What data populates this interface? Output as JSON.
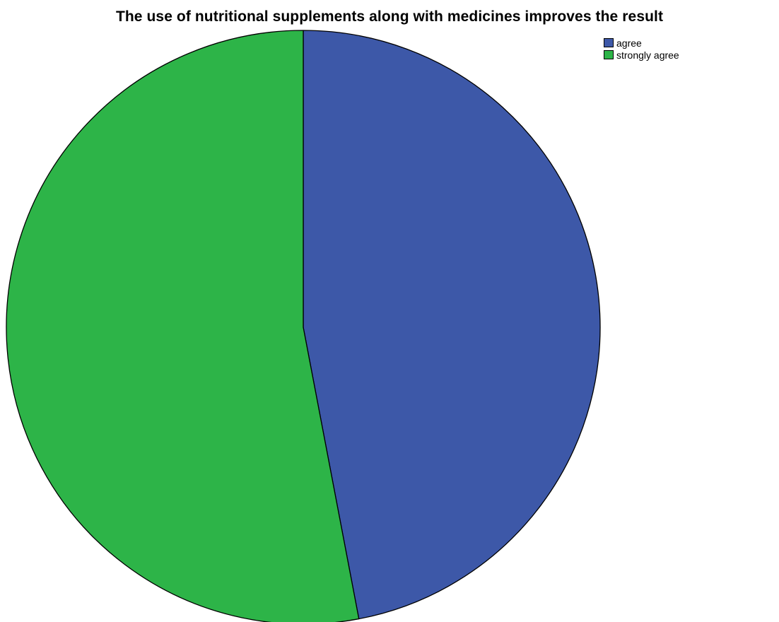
{
  "chart_data": {
    "type": "pie",
    "title": "The use of nutritional supplements along with medicines improves the result",
    "slices": [
      {
        "label": "agree",
        "value": 47,
        "color": "#3d58a8"
      },
      {
        "label": "strongly agree",
        "value": 53,
        "color": "#2db448"
      }
    ],
    "start_angle_deg": 0,
    "direction": "clockwise",
    "legend_position": "top-right",
    "outline_color": "#000000"
  }
}
